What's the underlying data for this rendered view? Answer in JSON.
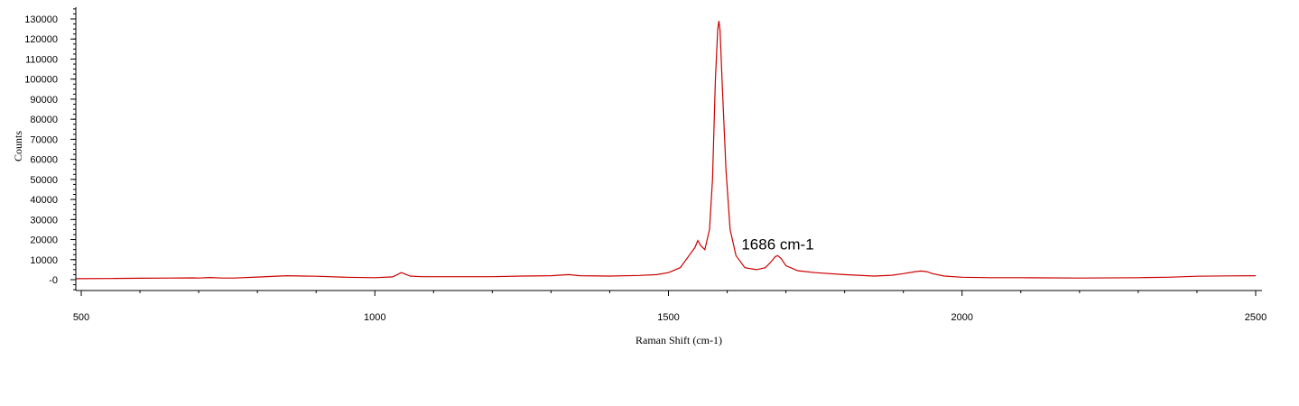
{
  "chart_data": {
    "type": "line",
    "title": "",
    "xlabel": "Raman Shift (cm-1)",
    "ylabel": "Counts",
    "xlim": [
      490,
      2505
    ],
    "ylim": [
      -8000,
      136000
    ],
    "x_ticks": [
      500,
      1000,
      1500,
      2000,
      2500
    ],
    "y_ticks": [
      0,
      10000,
      20000,
      30000,
      40000,
      50000,
      60000,
      70000,
      80000,
      90000,
      100000,
      110000,
      120000,
      130000
    ],
    "y_tick_labels": [
      "-0",
      "10000",
      "20000",
      "30000",
      "40000",
      "50000",
      "60000",
      "70000",
      "80000",
      "90000",
      "100000",
      "110000",
      "120000",
      "130000"
    ],
    "grid": false,
    "line_color": "#cc0000",
    "annotations": [
      {
        "text": "1686 cm-1",
        "x": 1686,
        "y": 16500
      }
    ],
    "series": [
      {
        "x": [
          490,
          550,
          600,
          650,
          690,
          700,
          720,
          740,
          760,
          800,
          850,
          880,
          900,
          950,
          1000,
          1030,
          1040,
          1045,
          1050,
          1060,
          1080,
          1100,
          1150,
          1200,
          1250,
          1300,
          1330,
          1350,
          1400,
          1450,
          1480,
          1500,
          1520,
          1535,
          1545,
          1550,
          1555,
          1562,
          1570,
          1575,
          1580,
          1584,
          1586,
          1588,
          1592,
          1598,
          1605,
          1615,
          1630,
          1650,
          1665,
          1675,
          1682,
          1686,
          1692,
          1700,
          1720,
          1750,
          1800,
          1850,
          1880,
          1900,
          1920,
          1930,
          1940,
          1950,
          1970,
          2000,
          2050,
          2100,
          2200,
          2300,
          2350,
          2400,
          2450,
          2500
        ],
        "y": [
          500,
          600,
          700,
          800,
          900,
          800,
          1100,
          800,
          800,
          1300,
          2000,
          1800,
          1700,
          1200,
          1000,
          1400,
          2800,
          3500,
          3000,
          1800,
          1500,
          1500,
          1500,
          1500,
          1800,
          2000,
          2500,
          2000,
          1800,
          2100,
          2500,
          3500,
          6000,
          12000,
          16000,
          19500,
          17000,
          15000,
          25000,
          50000,
          100000,
          125000,
          129000,
          124000,
          95000,
          55000,
          25000,
          12000,
          6000,
          5000,
          6000,
          9000,
          11500,
          12000,
          10500,
          7000,
          4500,
          3500,
          2500,
          1800,
          2200,
          3000,
          4000,
          4300,
          4000,
          3000,
          1800,
          1200,
          1000,
          1000,
          800,
          1000,
          1200,
          1700,
          1900,
          2000
        ]
      }
    ]
  }
}
